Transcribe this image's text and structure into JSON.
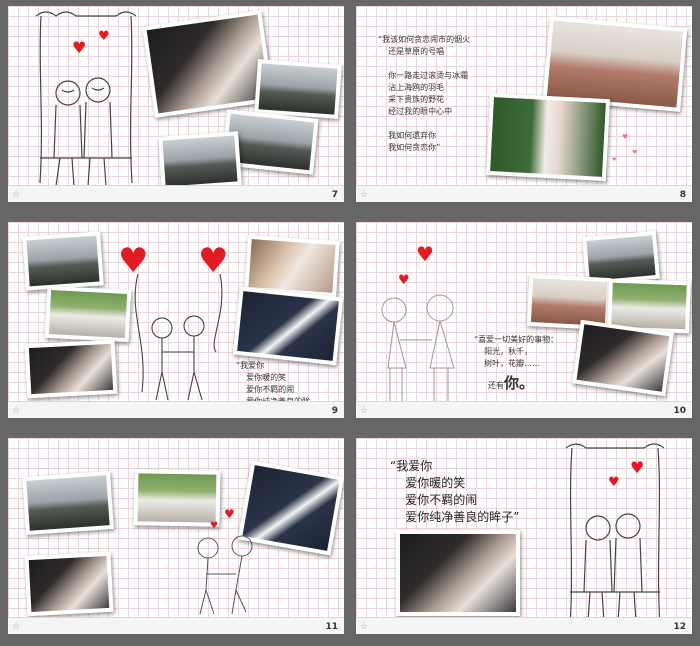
{
  "slides": [
    {
      "number": "7"
    },
    {
      "number": "8",
      "poem": "“我该如何贪恋闹市的烟火\n    还是草原的号唱\n\n    你一路走过滚烫与冰霜\n    沾上海鸥的羽毛\n    采下贵族的野花\n    经过我的眼中心中\n\n    我如何遗弃你\n    我如何贪恋你”"
    },
    {
      "number": "9",
      "poem": "“我爱你\n    爱你暖的笑\n    爱你不羁的闹\n    爱你纯净善良的眸\n子”"
    },
    {
      "number": "10",
      "poem": "“喜爱一切美好的事物：\n    阳光，秋千，\n    树叶，花瓣……",
      "you_prefix": "还有",
      "you_big": "你。"
    },
    {
      "number": "11"
    },
    {
      "number": "12",
      "poem": "“我爱你\n    爱你暖的笑\n    爱你不羁的闹\n    爱你纯净善良的眸子”"
    }
  ],
  "footer_icon": "☆",
  "colors": {
    "heart": "#e01b24",
    "grid": "#ecd6da",
    "background": "#666666"
  }
}
